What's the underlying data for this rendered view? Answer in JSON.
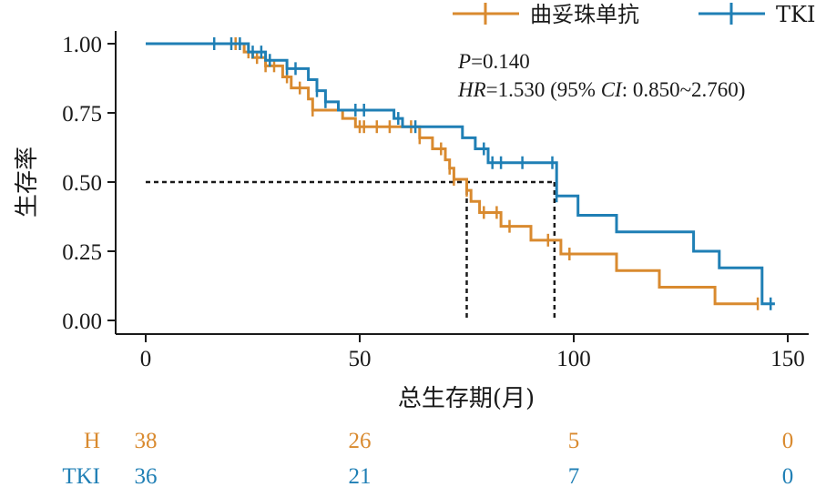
{
  "chart_data": {
    "type": "line",
    "subtype": "kaplan-meier",
    "xlabel": "总生存期(月)",
    "ylabel": "生存率",
    "xlim": [
      0,
      150
    ],
    "ylim": [
      0,
      1
    ],
    "xticks": [
      0,
      50,
      100,
      150
    ],
    "yticks": [
      0.0,
      0.25,
      0.5,
      0.75,
      1.0
    ],
    "grid": false,
    "legend_position": "top",
    "annotations": {
      "p_label": "P",
      "p_value": "=0.140",
      "hr_label": "HR",
      "hr_value": "=1.530 (95% ",
      "ci_label": "CI",
      "ci_value": ": 0.850~2.760)"
    },
    "median_line": {
      "y": 0.5,
      "x_values": [
        75,
        95.5
      ]
    },
    "series": [
      {
        "name": "曲妥珠单抗",
        "color": "#d98a2f",
        "steps": [
          [
            0,
            1.0
          ],
          [
            23,
            0.97
          ],
          [
            25,
            0.95
          ],
          [
            28,
            0.92
          ],
          [
            32,
            0.88
          ],
          [
            34,
            0.84
          ],
          [
            38,
            0.8
          ],
          [
            39,
            0.76
          ],
          [
            46,
            0.73
          ],
          [
            49,
            0.7
          ],
          [
            64,
            0.66
          ],
          [
            67,
            0.62
          ],
          [
            70,
            0.58
          ],
          [
            71,
            0.55
          ],
          [
            72,
            0.51
          ],
          [
            75,
            0.47
          ],
          [
            76,
            0.43
          ],
          [
            78,
            0.39
          ],
          [
            83,
            0.34
          ],
          [
            90,
            0.29
          ],
          [
            97,
            0.24
          ],
          [
            110,
            0.18
          ],
          [
            120,
            0.12
          ],
          [
            133,
            0.06
          ],
          [
            143,
            0.06
          ]
        ],
        "censor_x": [
          21,
          24,
          26,
          28,
          30,
          33,
          36,
          39,
          50,
          51,
          54,
          57,
          62,
          64,
          69,
          71,
          72,
          75,
          79,
          82,
          85,
          94,
          99,
          143
        ]
      },
      {
        "name": "TKI",
        "color": "#1f7fb5",
        "steps": [
          [
            0,
            1.0
          ],
          [
            24,
            0.97
          ],
          [
            28,
            0.94
          ],
          [
            33,
            0.91
          ],
          [
            38,
            0.87
          ],
          [
            40,
            0.83
          ],
          [
            42,
            0.79
          ],
          [
            45,
            0.76
          ],
          [
            58,
            0.73
          ],
          [
            60,
            0.7
          ],
          [
            74,
            0.66
          ],
          [
            77,
            0.62
          ],
          [
            80,
            0.57
          ],
          [
            96,
            0.45
          ],
          [
            101,
            0.38
          ],
          [
            110,
            0.32
          ],
          [
            128,
            0.25
          ],
          [
            134,
            0.19
          ],
          [
            144,
            0.06
          ],
          [
            147,
            0.06
          ]
        ],
        "censor_x": [
          16,
          20,
          22,
          25,
          27,
          29,
          33,
          35,
          40,
          42,
          49,
          51,
          59,
          63,
          79,
          81,
          83,
          88,
          95,
          96,
          146
        ]
      }
    ],
    "risk_table": {
      "times": [
        0,
        50,
        100,
        150
      ],
      "rows": [
        {
          "label": "H",
          "color": "#d98a2f",
          "values": [
            38,
            26,
            5,
            0
          ]
        },
        {
          "label": "TKI",
          "color": "#1f7fb5",
          "values": [
            36,
            21,
            7,
            0
          ]
        }
      ]
    }
  }
}
